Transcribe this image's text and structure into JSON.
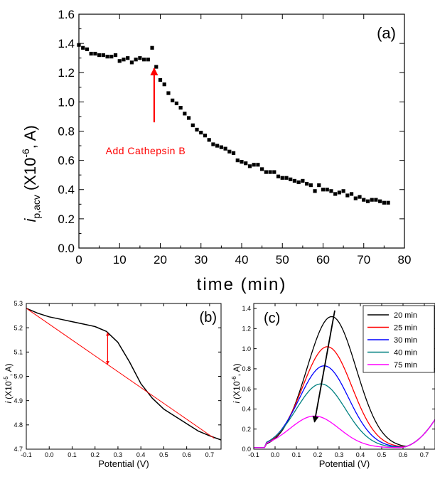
{
  "chart_data": [
    {
      "panel": "(a)",
      "type": "scatter",
      "xlabel": "time (min)",
      "ylabel_main": "i",
      "ylabel_sub": "p,acv",
      "ylabel_unit_pre": "(X10",
      "ylabel_unit_exp": "-6",
      "ylabel_unit_post": ", A)",
      "xlim": [
        0,
        80
      ],
      "ylim": [
        0.0,
        1.6
      ],
      "xticks": [
        "0",
        "10",
        "20",
        "30",
        "40",
        "50",
        "60",
        "70",
        "80"
      ],
      "yticks": [
        "0.0",
        "0.2",
        "0.4",
        "0.6",
        "0.8",
        "1.0",
        "1.2",
        "1.4",
        "1.6"
      ],
      "annotation": {
        "text": "Add Cathepsin B",
        "x": 18.5,
        "y_from": 0.86,
        "y_to": 1.23,
        "color": "#ff0000"
      },
      "marker_color": "#000000",
      "x": [
        0,
        1,
        2,
        3,
        4,
        5,
        6,
        7,
        8,
        9,
        10,
        11,
        12,
        13,
        14,
        15,
        16,
        17,
        18,
        19,
        20,
        21,
        22,
        23,
        24,
        25,
        26,
        27,
        28,
        29,
        30,
        31,
        32,
        33,
        34,
        35,
        36,
        37,
        38,
        39,
        40,
        41,
        42,
        43,
        44,
        45,
        46,
        47,
        48,
        49,
        50,
        51,
        52,
        53,
        54,
        55,
        56,
        57,
        58,
        59,
        60,
        61,
        62,
        63,
        64,
        65,
        66,
        67,
        68,
        69,
        70,
        71,
        72,
        73,
        74,
        75,
        76
      ],
      "y": [
        1.39,
        1.37,
        1.36,
        1.33,
        1.33,
        1.32,
        1.32,
        1.31,
        1.31,
        1.32,
        1.28,
        1.29,
        1.3,
        1.27,
        1.29,
        1.3,
        1.29,
        1.29,
        1.37,
        1.24,
        1.15,
        1.12,
        1.06,
        1.01,
        0.99,
        0.96,
        0.92,
        0.89,
        0.84,
        0.81,
        0.79,
        0.77,
        0.74,
        0.71,
        0.7,
        0.69,
        0.68,
        0.66,
        0.65,
        0.6,
        0.59,
        0.58,
        0.56,
        0.57,
        0.57,
        0.54,
        0.52,
        0.52,
        0.52,
        0.49,
        0.48,
        0.48,
        0.47,
        0.46,
        0.45,
        0.46,
        0.44,
        0.43,
        0.39,
        0.43,
        0.4,
        0.4,
        0.39,
        0.37,
        0.38,
        0.39,
        0.36,
        0.37,
        0.34,
        0.35,
        0.33,
        0.32,
        0.33,
        0.33,
        0.32,
        0.31,
        0.31
      ]
    },
    {
      "panel": "(b)",
      "type": "line",
      "xlabel": "Potential (V)",
      "ylabel_main": "i",
      "ylabel_unit_pre": "(X10",
      "ylabel_unit_exp": "-5",
      "ylabel_unit_post": ", A)",
      "xlim": [
        -0.1,
        0.75
      ],
      "ylim": [
        4.7,
        5.3
      ],
      "xticks": [
        "-0.1",
        "0.0",
        "0.1",
        "0.2",
        "0.3",
        "0.4",
        "0.5",
        "0.6",
        "0.7"
      ],
      "yticks": [
        "4.7",
        "4.8",
        "4.9",
        "5.0",
        "5.1",
        "5.2",
        "5.3"
      ],
      "series": [
        {
          "color": "#000000",
          "x": [
            -0.1,
            -0.05,
            0.0,
            0.05,
            0.1,
            0.15,
            0.2,
            0.25,
            0.3,
            0.35,
            0.4,
            0.45,
            0.5,
            0.55,
            0.6,
            0.65,
            0.7,
            0.75
          ],
          "y": [
            5.28,
            5.26,
            5.245,
            5.235,
            5.225,
            5.215,
            5.205,
            5.185,
            5.14,
            5.06,
            4.97,
            4.91,
            4.865,
            4.835,
            4.805,
            4.775,
            4.755,
            4.738
          ]
        },
        {
          "color": "#ff0000",
          "x": [
            -0.1,
            0.72
          ],
          "y": [
            5.28,
            4.745
          ]
        }
      ],
      "arrow": {
        "x": 0.255,
        "y_from": 5.05,
        "y_to": 5.18,
        "color": "#ff0000"
      }
    },
    {
      "panel": "(c)",
      "type": "line",
      "xlabel": "Potential (V)",
      "ylabel_main": "i",
      "ylabel_unit_pre": "(X10",
      "ylabel_unit_exp": "-6",
      "ylabel_unit_post": ", A)",
      "xlim": [
        -0.1,
        0.75
      ],
      "ylim": [
        0.0,
        1.45
      ],
      "xticks": [
        "-0.1",
        "0.0",
        "0.1",
        "0.2",
        "0.3",
        "0.4",
        "0.5",
        "0.6",
        "0.7"
      ],
      "yticks": [
        "0.0",
        "0.2",
        "0.4",
        "0.6",
        "0.8",
        "1.0",
        "1.2",
        "1.4"
      ],
      "legend_position": "top-right",
      "series": [
        {
          "name": "20 min",
          "color": "#000000",
          "peak_x": 0.265,
          "peak_y": 1.32
        },
        {
          "name": "25 min",
          "color": "#ff0000",
          "peak_x": 0.245,
          "peak_y": 1.02
        },
        {
          "name": "30 min",
          "color": "#0000ff",
          "peak_x": 0.23,
          "peak_y": 0.83
        },
        {
          "name": "40 min",
          "color": "#008080",
          "peak_x": 0.215,
          "peak_y": 0.65
        },
        {
          "name": "75 min",
          "color": "#ff00ff",
          "peak_x": 0.185,
          "peak_y": 0.33
        }
      ],
      "arrow": {
        "x_from": 0.28,
        "y_from": 1.38,
        "x_to": 0.185,
        "y_to": 0.27,
        "color": "#000000"
      }
    }
  ]
}
